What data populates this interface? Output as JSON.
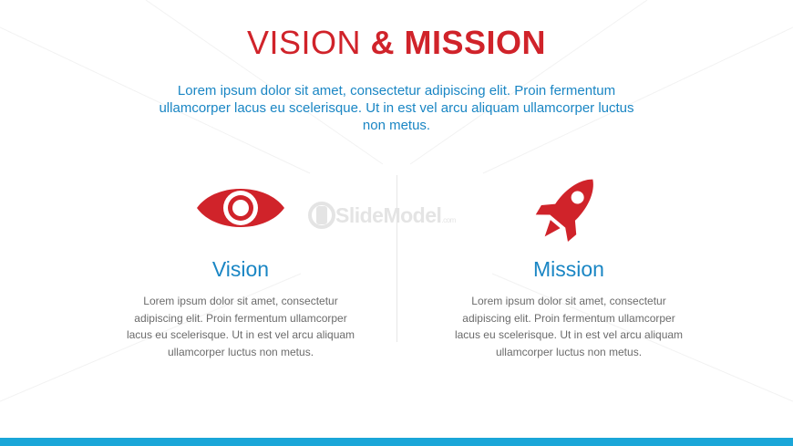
{
  "title": {
    "part1": "VISION ",
    "part2": "& MISSION"
  },
  "subtitle": "Lorem ipsum dolor sit amet, consectetur adipiscing elit. Proin fermentum ullamcorper lacus eu scelerisque. Ut in est vel arcu aliquam ullamcorper luctus non metus.",
  "watermark": {
    "brand": "SlideModel",
    "suffix": ".com"
  },
  "vision": {
    "icon": "eye-icon",
    "heading": "Vision",
    "body": "Lorem ipsum dolor sit amet, consectetur adipiscing elit. Proin fermentum ullamcorper lacus eu scelerisque. Ut in est vel arcu aliquam ullamcorper luctus non metus."
  },
  "mission": {
    "icon": "rocket-icon",
    "heading": "Mission",
    "body": "Lorem ipsum dolor sit amet, consectetur adipiscing elit. Proin fermentum ullamcorper lacus eu scelerisque. Ut in est vel arcu aliquam ullamcorper luctus non metus."
  },
  "colors": {
    "accent_red": "#d0232a",
    "accent_blue": "#1a86c4",
    "bar_blue": "#1aa6d8",
    "body_gray": "#6b6b6b"
  }
}
